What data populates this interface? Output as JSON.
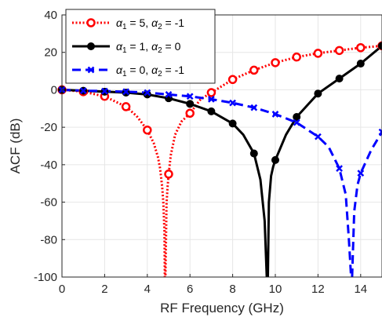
{
  "chart_data": {
    "type": "line",
    "xlabel": "RF Frequency (GHz)",
    "ylabel": "ACF (dB)",
    "xlim": [
      0,
      15
    ],
    "ylim": [
      -100,
      40
    ],
    "xticks": [
      0,
      2,
      4,
      6,
      8,
      10,
      12,
      14
    ],
    "yticks": [
      40,
      20,
      0,
      -20,
      -40,
      -60,
      -80,
      -100
    ],
    "grid": true,
    "legend_position": "top-left",
    "series": [
      {
        "name": "α1 = 5, α2 = -1",
        "legend_parts": {
          "a": "α",
          "s1": "1",
          "m": " = 5, ",
          "b": "α",
          "s2": "2",
          "e": " = -1"
        },
        "color": "#ff0000",
        "linestyle": "dotted",
        "marker": "circle-open",
        "curve": {
          "x": [
            0,
            1,
            2,
            3,
            3.5,
            4,
            4.3,
            4.5,
            4.6,
            4.7,
            4.75,
            4.8,
            4.82,
            4.85,
            4.9,
            4.95,
            5.0,
            5.1,
            5.3,
            5.6,
            6,
            6.5,
            7,
            8,
            9,
            10,
            11,
            12,
            13,
            14,
            15
          ],
          "y": [
            0,
            -1,
            -3.5,
            -9,
            -14,
            -21.5,
            -28.5,
            -36,
            -42,
            -52,
            -60,
            -75,
            -100,
            -100,
            -61,
            -52,
            -45,
            -35,
            -24,
            -17,
            -12.5,
            -5,
            -1.5,
            5.5,
            10.5,
            14.5,
            17.5,
            19.5,
            21,
            22.5,
            23.5
          ]
        },
        "markers": {
          "x": [
            0,
            1,
            2,
            3,
            4,
            5,
            6,
            7,
            8,
            9,
            10,
            11,
            12,
            13,
            14,
            15
          ],
          "y": [
            0,
            -1,
            -3.5,
            -9,
            -21.5,
            -45,
            -12.5,
            -1.5,
            5.5,
            10.5,
            14.5,
            17.5,
            19.5,
            21,
            22.5,
            23.5
          ]
        }
      },
      {
        "name": "α1 = 1, α2 = 0",
        "legend_parts": {
          "a": "α",
          "s1": "1",
          "m": " = 1, ",
          "b": "α",
          "s2": "2",
          "e": " = 0"
        },
        "color": "#000000",
        "linestyle": "solid",
        "marker": "circle-filled",
        "curve": {
          "x": [
            0,
            1,
            2,
            3,
            4,
            5,
            6,
            7,
            8,
            8.5,
            9,
            9.3,
            9.5,
            9.6,
            9.65,
            9.7,
            9.8,
            9.9,
            10,
            10.5,
            11,
            12,
            13,
            14,
            15
          ],
          "y": [
            0,
            -0.5,
            -1,
            -1.5,
            -2.5,
            -4.5,
            -7.5,
            -11.5,
            -18,
            -24,
            -34,
            -48,
            -70,
            -100,
            -100,
            -60,
            -46,
            -41,
            -37.5,
            -24,
            -14.5,
            -2,
            6,
            14,
            23.5
          ]
        },
        "markers": {
          "x": [
            0,
            1,
            2,
            3,
            4,
            5,
            6,
            7,
            8,
            9,
            10,
            11,
            12,
            13,
            14,
            15
          ],
          "y": [
            0,
            -0.5,
            -1,
            -1.5,
            -2.5,
            -4.5,
            -7.5,
            -11.5,
            -18,
            -34,
            -37.5,
            -14.5,
            -2,
            6,
            14,
            23.5
          ]
        }
      },
      {
        "name": "α1 = 0, α2 = -1",
        "legend_parts": {
          "a": "α",
          "s1": "1",
          "m": " = 0, ",
          "b": "α",
          "s2": "2",
          "e": " = -1"
        },
        "color": "#0000ff",
        "linestyle": "dashed",
        "marker": "x",
        "curve": {
          "x": [
            0,
            1,
            2,
            3,
            4,
            5,
            6,
            7,
            8,
            9,
            10,
            11,
            12,
            12.5,
            13,
            13.3,
            13.45,
            13.55,
            13.6,
            13.7,
            13.85,
            14,
            14.5,
            15
          ],
          "y": [
            0,
            -0.5,
            -0.7,
            -1,
            -1.5,
            -2.5,
            -3.5,
            -5,
            -7,
            -9.5,
            -13,
            -17.5,
            -25,
            -30.5,
            -42,
            -56,
            -80,
            -100,
            -100,
            -65,
            -51,
            -44.5,
            -32,
            -22.5
          ]
        },
        "markers": {
          "x": [
            0,
            1,
            2,
            3,
            4,
            5,
            6,
            7,
            8,
            9,
            10,
            11,
            12,
            13,
            14,
            15
          ],
          "y": [
            0,
            -0.5,
            -0.7,
            -1,
            -1.5,
            -2.5,
            -3.5,
            -5,
            -7,
            -9.5,
            -13,
            -17.5,
            -25,
            -42,
            -44.5,
            -22.5
          ]
        }
      }
    ]
  }
}
